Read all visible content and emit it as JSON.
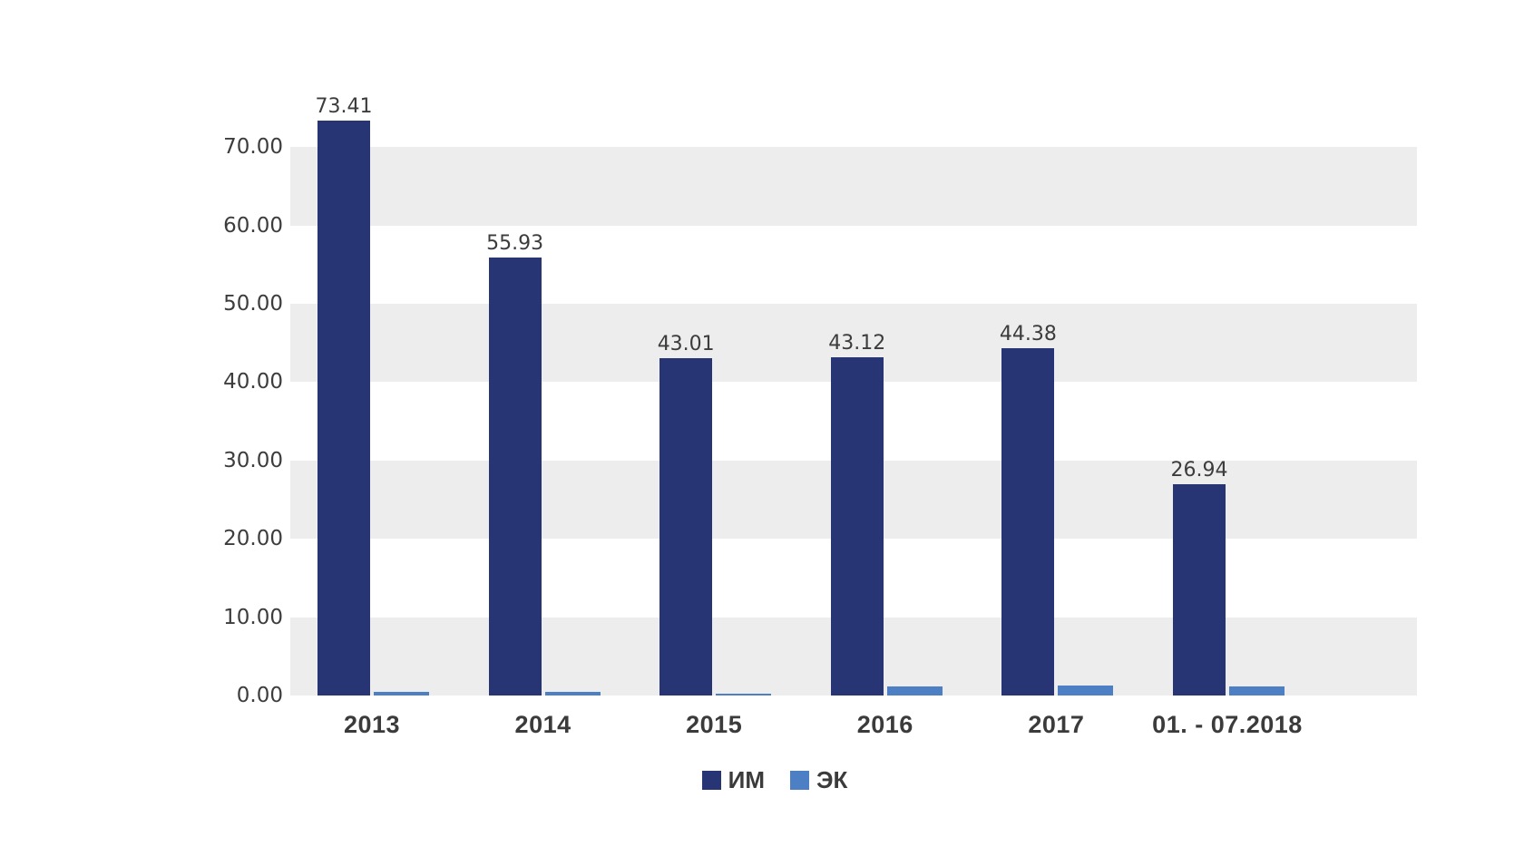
{
  "chart_data": {
    "type": "bar",
    "title": "",
    "categories": [
      "2013",
      "2014",
      "2015",
      "2016",
      "2017",
      "01. - 07.2018"
    ],
    "series": [
      {
        "name": "ИМ",
        "color": "#283574",
        "values": [
          73.41,
          55.93,
          43.01,
          43.12,
          44.38,
          26.94
        ],
        "data_labels": [
          "73.41",
          "55.93",
          "43.01",
          "43.12",
          "44.38",
          "26.94"
        ],
        "labels_shown": true
      },
      {
        "name": "ЭК",
        "color": "#4d7fc4",
        "values": [
          0.41,
          0.52,
          0.21,
          1.19,
          1.33,
          1.16
        ],
        "labels_shown": false
      }
    ],
    "y_axis": {
      "tick_labels": [
        "0.00",
        "10.00",
        "20.00",
        "30.00",
        "40.00",
        "50.00",
        "60.00",
        "70.00"
      ],
      "tick_interval": 10,
      "ylim": [
        0,
        79.7
      ]
    },
    "grid": "alternating horizontal bands",
    "band_color": "#ededed",
    "background_color": "#ffffff",
    "text_color": "#3d3d3d",
    "legend_position": "bottom"
  }
}
